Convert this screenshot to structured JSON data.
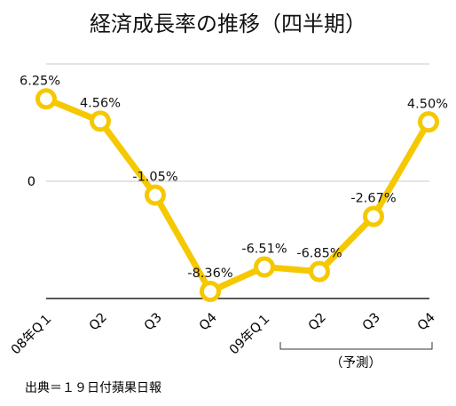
{
  "chart_data": {
    "type": "line",
    "title": "経済成長率の推移（四半期）",
    "categories": [
      "08年Q１",
      "Q2",
      "Q3",
      "Q4",
      "09年Q１",
      "Q2",
      "Q3",
      "Q4"
    ],
    "values": [
      6.25,
      4.56,
      -1.05,
      -8.36,
      -6.51,
      -6.85,
      -2.67,
      4.5
    ],
    "data_labels": [
      "6.25%",
      "4.56%",
      "-1.05%",
      "-8.36%",
      "-6.51%",
      "-6.85%",
      "-2.67%",
      "4.50%"
    ],
    "y_tick_labels": [
      {
        "value": 0,
        "label": "0"
      }
    ],
    "ylim": [
      -8.9,
      8.9
    ],
    "grid": true,
    "line_color": "#F5C800",
    "annotation": "（予測）",
    "annotation_span": [
      5,
      7
    ],
    "source": "出典＝１９日付蘋果日報"
  }
}
